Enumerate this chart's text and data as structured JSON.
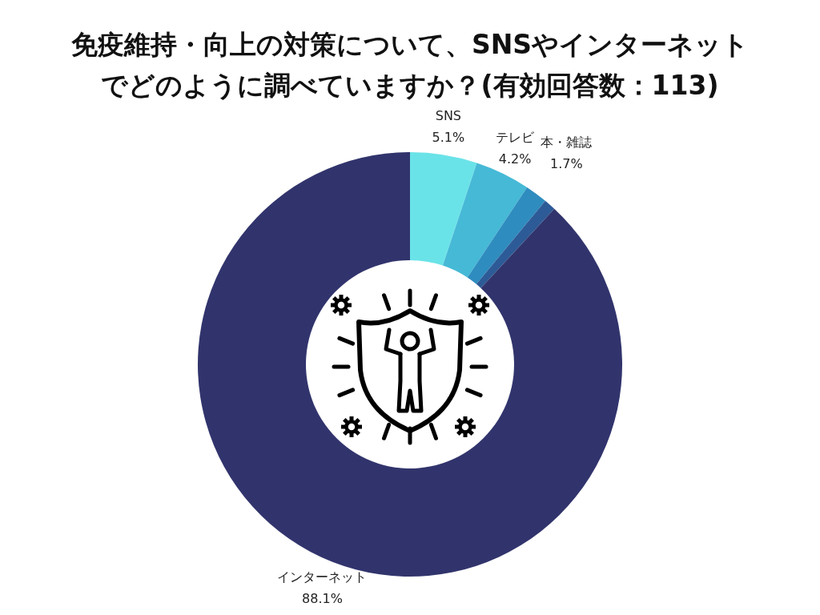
{
  "chart_data": {
    "type": "donut",
    "title": "免疫維持・向上の対策について、SNSやインターネットでどのように調べていますか？(有効回答数：113)",
    "categories": [
      "SNS",
      "テレビ",
      "本・雑誌",
      null,
      "インターネット"
    ],
    "values": [
      5.1,
      4.2,
      1.7,
      0.9,
      88.1
    ],
    "colors": [
      "#6ae3e8",
      "#46b9d6",
      "#2f8cbf",
      "#2d5b97",
      "#31346c"
    ],
    "value_labels": [
      "5.1%",
      "4.2%",
      "1.7%",
      null,
      "88.1%"
    ]
  }
}
